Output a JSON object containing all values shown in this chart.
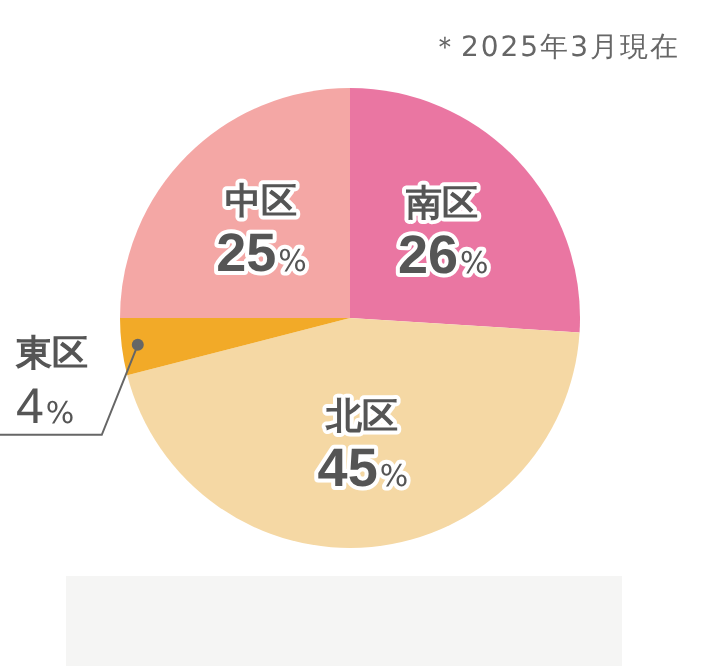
{
  "chart_data": {
    "type": "pie",
    "categories": [
      "南区",
      "北区",
      "東区",
      "中区"
    ],
    "values": [
      26,
      45,
      4,
      25
    ],
    "colors": [
      "#ea76a2",
      "#f5d8a4",
      "#f2aa28",
      "#f4a7a5"
    ],
    "value_labels": [
      "26%",
      "45%",
      "4%",
      "25%"
    ],
    "annotations": [
      "＊2025年3月現在"
    ]
  }
}
